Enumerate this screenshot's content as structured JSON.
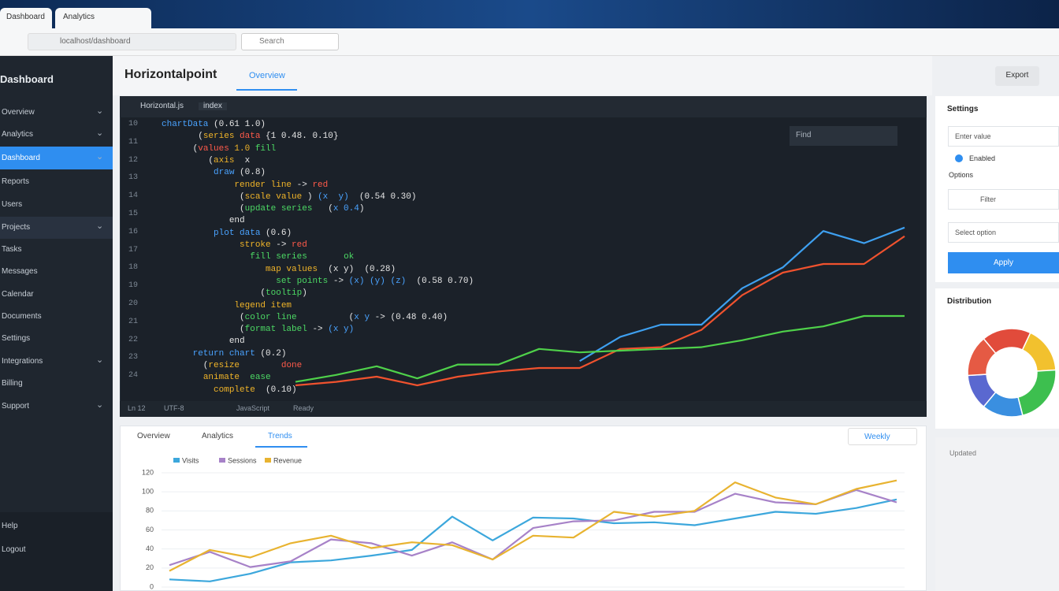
{
  "browser": {
    "tabs": [
      "Dashboard",
      "Analytics"
    ],
    "address": "localhost/dashboard",
    "search": "Search"
  },
  "sidebar": {
    "title": "Dashboard",
    "items": [
      "Overview",
      "Analytics",
      "Dashboard",
      "Reports",
      "Users",
      "Projects",
      "Tasks",
      "Messages",
      "Calendar",
      "Documents",
      "Settings",
      "Integrations",
      "Billing",
      "Support"
    ],
    "footer": [
      "Help",
      "Logout"
    ]
  },
  "header": {
    "title": "Horizontalpoint",
    "tab": "Overview",
    "button": "Export"
  },
  "editor": {
    "tabs": [
      "Horizontal.js",
      "index"
    ],
    "search": "Find",
    "line_numbers": [
      "10",
      "11",
      "12",
      "13",
      "14",
      "15",
      "16",
      "17",
      "18",
      "19",
      "20",
      "21",
      "22",
      "23",
      "24"
    ],
    "code": [
      [
        {
          "text": "chartData",
          "color": "#4aa3ff"
        },
        {
          "text": " (0.61 1.0)",
          "color": "#e6e6e6"
        }
      ],
      [
        {
          "text": "       (",
          "color": "#e6e6e6"
        },
        {
          "text": "series",
          "color": "#f0b429"
        },
        {
          "text": " data",
          "color": "#ff5a4a"
        },
        {
          "text": " {1 0.48. 0.10}",
          "color": "#e6e6e6"
        }
      ],
      [
        {
          "text": "      (",
          "color": "#e6e6e6"
        },
        {
          "text": "values",
          "color": "#ff5a4a"
        },
        {
          "text": " 1.0",
          "color": "#f0b429"
        },
        {
          "text": " fill",
          "color": "#4cd964"
        }
      ],
      [
        {
          "text": "         (",
          "color": "#e6e6e6"
        },
        {
          "text": "axis",
          "color": "#f0b429"
        },
        {
          "text": "  x",
          "color": "#e6e6e6"
        }
      ],
      [
        {
          "text": "          ",
          "color": "#e6e6e6"
        },
        {
          "text": "draw",
          "color": "#4aa3ff"
        },
        {
          "text": " (0.8)",
          "color": "#e6e6e6"
        }
      ],
      [
        {
          "text": "              ",
          "color": "#e6e6e6"
        },
        {
          "text": "render line",
          "color": "#f0b429"
        },
        {
          "text": " -> ",
          "color": "#e6e6e6"
        },
        {
          "text": "red",
          "color": "#ff5a4a"
        }
      ],
      [
        {
          "text": "               (",
          "color": "#e6e6e6"
        },
        {
          "text": "scale value",
          "color": "#f0b429"
        },
        {
          "text": " ) ",
          "color": "#e6e6e6"
        },
        {
          "text": "(x  y)",
          "color": "#4aa3ff"
        },
        {
          "text": "  (0.54 0.30)",
          "color": "#e6e6e6"
        }
      ],
      [
        {
          "text": "               (",
          "color": "#e6e6e6"
        },
        {
          "text": "update series",
          "color": "#4cd964"
        },
        {
          "text": "   (",
          "color": "#e6e6e6"
        },
        {
          "text": "x 0.4",
          "color": "#4aa3ff"
        },
        {
          "text": ")",
          "color": "#e6e6e6"
        }
      ],
      [
        {
          "text": "             ",
          "color": "#e6e6e6"
        },
        {
          "text": "end",
          "color": "#e6e6e6"
        }
      ],
      [
        {
          "text": "          ",
          "color": "#e6e6e6"
        },
        {
          "text": "plot data",
          "color": "#4aa3ff"
        },
        {
          "text": " (0.6)",
          "color": "#e6e6e6"
        }
      ],
      [
        {
          "text": "               ",
          "color": "#e6e6e6"
        },
        {
          "text": "stroke",
          "color": "#f0b429"
        },
        {
          "text": " -> ",
          "color": "#e6e6e6"
        },
        {
          "text": "red",
          "color": "#ff5a4a"
        }
      ],
      [
        {
          "text": "                 ",
          "color": "#e6e6e6"
        },
        {
          "text": "fill series",
          "color": "#4cd964"
        },
        {
          "text": "       ",
          "color": "#e6e6e6"
        },
        {
          "text": "ok",
          "color": "#4cd964"
        }
      ],
      [
        {
          "text": "                    ",
          "color": "#e6e6e6"
        },
        {
          "text": "map values",
          "color": "#f0b429"
        },
        {
          "text": "  (x y)  (0.28)",
          "color": "#e6e6e6"
        }
      ],
      [
        {
          "text": "                      ",
          "color": "#e6e6e6"
        },
        {
          "text": "set points",
          "color": "#4cd964"
        },
        {
          "text": " -> ",
          "color": "#e6e6e6"
        },
        {
          "text": "(x) (y) (z)",
          "color": "#4aa3ff"
        },
        {
          "text": "  (0.58 0.70)",
          "color": "#e6e6e6"
        }
      ],
      [
        {
          "text": "                   (",
          "color": "#e6e6e6"
        },
        {
          "text": "tooltip",
          "color": "#4cd964"
        },
        {
          "text": ")",
          "color": "#e6e6e6"
        }
      ],
      [
        {
          "text": "              ",
          "color": "#e6e6e6"
        },
        {
          "text": "legend item",
          "color": "#f0b429"
        }
      ],
      [
        {
          "text": "               (",
          "color": "#e6e6e6"
        },
        {
          "text": "color line",
          "color": "#4cd964"
        },
        {
          "text": "          (",
          "color": "#e6e6e6"
        },
        {
          "text": "x y",
          "color": "#4aa3ff"
        },
        {
          "text": " -> (0.48 0.40)",
          "color": "#e6e6e6"
        }
      ],
      [
        {
          "text": "               (",
          "color": "#e6e6e6"
        },
        {
          "text": "format label",
          "color": "#4cd964"
        },
        {
          "text": " -> ",
          "color": "#e6e6e6"
        },
        {
          "text": "(x y)",
          "color": "#4aa3ff"
        }
      ],
      [
        {
          "text": "             end",
          "color": "#e6e6e6"
        }
      ],
      [
        {
          "text": "      ",
          "color": "#e6e6e6"
        },
        {
          "text": "return chart",
          "color": "#4aa3ff"
        },
        {
          "text": " (0.2)",
          "color": "#e6e6e6"
        }
      ],
      [
        {
          "text": "        (",
          "color": "#e6e6e6"
        },
        {
          "text": "resize",
          "color": "#f0b429"
        },
        {
          "text": "        ",
          "color": "#e6e6e6"
        },
        {
          "text": "done",
          "color": "#ff5a4a"
        }
      ],
      [
        {
          "text": "        ",
          "color": "#e6e6e6"
        },
        {
          "text": "animate",
          "color": "#f0b429"
        },
        {
          "text": "  ",
          "color": "#e6e6e6"
        },
        {
          "text": "ease",
          "color": "#4cd964"
        }
      ],
      [
        {
          "text": "          ",
          "color": "#e6e6e6"
        },
        {
          "text": "complete",
          "color": "#f0b429"
        },
        {
          "text": "  (0.10)",
          "color": "#e6e6e6"
        }
      ]
    ],
    "status": [
      "Ln 12",
      "UTF-8",
      "JavaScript",
      "Ready"
    ]
  },
  "bottom_panel": {
    "tabs": [
      "Overview",
      "Analytics",
      "Trends"
    ],
    "select": "Weekly"
  },
  "right_panel": {
    "title": "Settings",
    "fields": [
      "Enter value",
      "Enabled",
      "Options",
      "Filter",
      "Select option"
    ],
    "button": "Apply",
    "donut_title": "Distribution",
    "footer": "Updated"
  },
  "chart_data": [
    {
      "type": "line",
      "ylim": [
        0,
        100
      ],
      "series": [
        {
          "color": "#3ea0f0",
          "values": [
            null,
            null,
            null,
            null,
            null,
            null,
            null,
            19,
            33,
            40,
            40,
            61,
            73,
            94,
            87,
            96
          ]
        },
        {
          "color": "#f0522e",
          "values": [
            5,
            7,
            10,
            5,
            10,
            13,
            15,
            15,
            26,
            27,
            37,
            57,
            70,
            75,
            75,
            91
          ]
        },
        {
          "color": "#4fd14a",
          "values": [
            7,
            11,
            16,
            9,
            17,
            17,
            26,
            24,
            25,
            26,
            27,
            31,
            36,
            39,
            45,
            45
          ]
        }
      ]
    },
    {
      "type": "line",
      "ylim": [
        0,
        120
      ],
      "yticks": [
        0,
        20,
        40,
        60,
        80,
        100,
        120
      ],
      "grid": true,
      "series": [
        {
          "name": "Visits",
          "color": "#3ca7dc",
          "values": [
            8,
            6,
            14,
            26,
            28,
            33,
            39,
            74,
            49,
            73,
            72,
            67,
            68,
            65,
            72,
            79,
            77,
            83,
            92
          ]
        },
        {
          "name": "Sessions",
          "color": "#a782c8",
          "values": [
            23,
            37,
            21,
            27,
            50,
            46,
            33,
            47,
            29,
            62,
            69,
            70,
            79,
            79,
            98,
            89,
            87,
            102,
            89
          ]
        },
        {
          "name": "Revenue",
          "color": "#e8b330",
          "values": [
            17,
            39,
            31,
            46,
            54,
            41,
            47,
            44,
            29,
            54,
            52,
            79,
            74,
            80,
            110,
            94,
            87,
            103,
            112
          ]
        }
      ]
    },
    {
      "type": "pie",
      "values": [
        18,
        17,
        22,
        15,
        13,
        15
      ],
      "colors": [
        "#e14b3b",
        "#f2c12e",
        "#3dbf4f",
        "#3a8fe0",
        "#5a68d0",
        "#e55a44"
      ]
    }
  ]
}
